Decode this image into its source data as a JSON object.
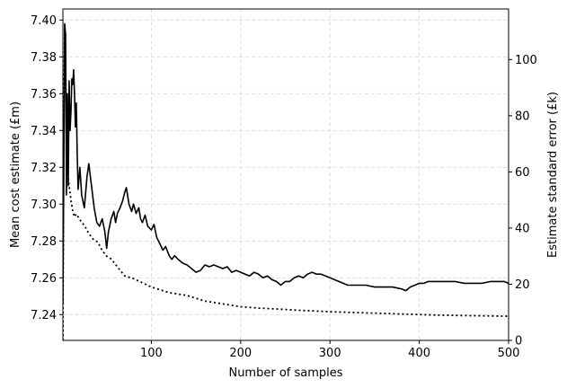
{
  "chart_data": {
    "type": "line",
    "title": "",
    "xlabel": "Number of samples",
    "ylabel_left": "Mean cost estimate (£m)",
    "ylabel_right": "Estimate standard error (£k)",
    "xlim": [
      1,
      500
    ],
    "ylim_left": [
      7.226,
      7.406
    ],
    "ylim_right": [
      0,
      118
    ],
    "grid": true,
    "x_ticks": [
      100,
      200,
      300,
      400,
      500
    ],
    "x_tick_labels": [
      "100",
      "200",
      "300",
      "400",
      "500"
    ],
    "y_left_ticks": [
      7.24,
      7.26,
      7.28,
      7.3,
      7.32,
      7.34,
      7.36,
      7.38,
      7.4
    ],
    "y_left_tick_labels": [
      "7.24",
      "7.26",
      "7.28",
      "7.30",
      "7.32",
      "7.34",
      "7.36",
      "7.38",
      "7.40"
    ],
    "y_right_ticks": [
      0,
      20,
      40,
      60,
      80,
      100
    ],
    "y_right_tick_labels": [
      "0",
      "20",
      "40",
      "60",
      "80",
      "100"
    ],
    "series": [
      {
        "axis": "left",
        "style": "solid",
        "color": "#000000",
        "points": [
          [
            1,
            7.246
          ],
          [
            2,
            7.318
          ],
          [
            3,
            7.398
          ],
          [
            4,
            7.392
          ],
          [
            5,
            7.305
          ],
          [
            6,
            7.36
          ],
          [
            7,
            7.31
          ],
          [
            8,
            7.367
          ],
          [
            9,
            7.34
          ],
          [
            10,
            7.35
          ],
          [
            11,
            7.368
          ],
          [
            12,
            7.365
          ],
          [
            13,
            7.373
          ],
          [
            14,
            7.36
          ],
          [
            15,
            7.342
          ],
          [
            16,
            7.355
          ],
          [
            17,
            7.328
          ],
          [
            18,
            7.308
          ],
          [
            20,
            7.32
          ],
          [
            22,
            7.305
          ],
          [
            25,
            7.298
          ],
          [
            28,
            7.315
          ],
          [
            30,
            7.322
          ],
          [
            33,
            7.31
          ],
          [
            36,
            7.298
          ],
          [
            39,
            7.29
          ],
          [
            42,
            7.288
          ],
          [
            45,
            7.292
          ],
          [
            48,
            7.285
          ],
          [
            50,
            7.276
          ],
          [
            52,
            7.285
          ],
          [
            55,
            7.292
          ],
          [
            58,
            7.296
          ],
          [
            60,
            7.29
          ],
          [
            62,
            7.295
          ],
          [
            65,
            7.298
          ],
          [
            68,
            7.302
          ],
          [
            70,
            7.306
          ],
          [
            72,
            7.309
          ],
          [
            75,
            7.3
          ],
          [
            78,
            7.296
          ],
          [
            80,
            7.3
          ],
          [
            83,
            7.295
          ],
          [
            86,
            7.298
          ],
          [
            88,
            7.292
          ],
          [
            90,
            7.29
          ],
          [
            93,
            7.294
          ],
          [
            96,
            7.288
          ],
          [
            100,
            7.286
          ],
          [
            103,
            7.289
          ],
          [
            106,
            7.282
          ],
          [
            110,
            7.278
          ],
          [
            113,
            7.275
          ],
          [
            116,
            7.277
          ],
          [
            120,
            7.272
          ],
          [
            123,
            7.27
          ],
          [
            126,
            7.272
          ],
          [
            130,
            7.27
          ],
          [
            135,
            7.268
          ],
          [
            140,
            7.267
          ],
          [
            145,
            7.265
          ],
          [
            150,
            7.263
          ],
          [
            155,
            7.264
          ],
          [
            160,
            7.267
          ],
          [
            165,
            7.266
          ],
          [
            170,
            7.267
          ],
          [
            175,
            7.266
          ],
          [
            180,
            7.265
          ],
          [
            185,
            7.266
          ],
          [
            190,
            7.263
          ],
          [
            195,
            7.264
          ],
          [
            200,
            7.263
          ],
          [
            205,
            7.262
          ],
          [
            210,
            7.261
          ],
          [
            215,
            7.263
          ],
          [
            220,
            7.262
          ],
          [
            225,
            7.26
          ],
          [
            230,
            7.261
          ],
          [
            235,
            7.259
          ],
          [
            240,
            7.258
          ],
          [
            245,
            7.256
          ],
          [
            250,
            7.258
          ],
          [
            255,
            7.258
          ],
          [
            260,
            7.26
          ],
          [
            265,
            7.261
          ],
          [
            270,
            7.26
          ],
          [
            275,
            7.262
          ],
          [
            280,
            7.263
          ],
          [
            285,
            7.262
          ],
          [
            290,
            7.262
          ],
          [
            295,
            7.261
          ],
          [
            300,
            7.26
          ],
          [
            305,
            7.259
          ],
          [
            310,
            7.258
          ],
          [
            315,
            7.257
          ],
          [
            320,
            7.256
          ],
          [
            330,
            7.256
          ],
          [
            340,
            7.256
          ],
          [
            350,
            7.255
          ],
          [
            360,
            7.255
          ],
          [
            370,
            7.255
          ],
          [
            380,
            7.254
          ],
          [
            385,
            7.253
          ],
          [
            390,
            7.255
          ],
          [
            395,
            7.256
          ],
          [
            400,
            7.257
          ],
          [
            405,
            7.257
          ],
          [
            410,
            7.258
          ],
          [
            420,
            7.258
          ],
          [
            430,
            7.258
          ],
          [
            440,
            7.258
          ],
          [
            450,
            7.257
          ],
          [
            460,
            7.257
          ],
          [
            470,
            7.257
          ],
          [
            480,
            7.258
          ],
          [
            490,
            7.258
          ],
          [
            495,
            7.258
          ],
          [
            500,
            7.257
          ]
        ]
      },
      {
        "axis": "right",
        "style": "dotted",
        "color": "#000000",
        "points": [
          [
            1,
            0
          ],
          [
            2,
            80
          ],
          [
            3,
            112
          ],
          [
            4,
            100
          ],
          [
            5,
            72
          ],
          [
            6,
            60
          ],
          [
            8,
            55
          ],
          [
            10,
            50
          ],
          [
            12,
            46
          ],
          [
            14,
            44
          ],
          [
            16,
            45
          ],
          [
            18,
            44
          ],
          [
            20,
            43
          ],
          [
            22,
            42
          ],
          [
            25,
            41
          ],
          [
            30,
            38
          ],
          [
            35,
            36
          ],
          [
            40,
            35
          ],
          [
            45,
            32
          ],
          [
            50,
            30
          ],
          [
            55,
            29
          ],
          [
            60,
            27
          ],
          [
            65,
            25
          ],
          [
            70,
            23
          ],
          [
            80,
            22
          ],
          [
            90,
            20.5
          ],
          [
            100,
            19
          ],
          [
            110,
            18
          ],
          [
            120,
            17
          ],
          [
            130,
            16.5
          ],
          [
            140,
            16
          ],
          [
            150,
            15
          ],
          [
            160,
            14
          ],
          [
            170,
            13.5
          ],
          [
            180,
            13
          ],
          [
            190,
            12.5
          ],
          [
            200,
            12
          ],
          [
            220,
            11.5
          ],
          [
            240,
            11.2
          ],
          [
            260,
            10.8
          ],
          [
            280,
            10.5
          ],
          [
            300,
            10.2
          ],
          [
            320,
            10
          ],
          [
            340,
            9.8
          ],
          [
            360,
            9.6
          ],
          [
            380,
            9.4
          ],
          [
            400,
            9.2
          ],
          [
            420,
            9
          ],
          [
            440,
            8.9
          ],
          [
            460,
            8.8
          ],
          [
            480,
            8.7
          ],
          [
            500,
            8.6
          ]
        ]
      }
    ]
  }
}
